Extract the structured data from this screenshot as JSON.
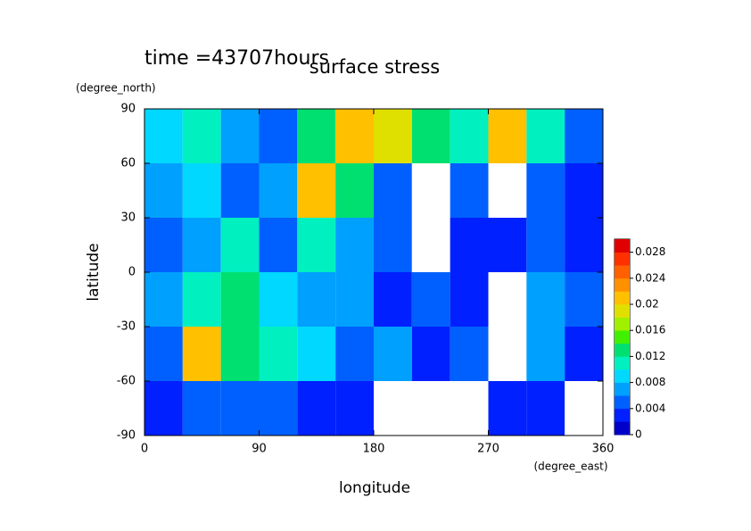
{
  "chart_data": {
    "type": "heatmap",
    "title": "surface stress",
    "subtitle": "time =43707hours",
    "x_label": "longitude",
    "x_unit": "(degree_east)",
    "y_label": "latitude",
    "y_unit": "(degree_north)",
    "x": [
      15,
      45,
      75,
      105,
      135,
      165,
      195,
      225,
      255,
      285,
      315,
      345
    ],
    "y": [
      75,
      45,
      15,
      -15,
      -45,
      -75
    ],
    "z": [
      [
        0.008,
        0.01,
        0.006,
        0.004,
        0.012,
        0.02,
        0.018,
        0.012,
        0.01,
        0.02,
        0.01,
        0.004
      ],
      [
        0.006,
        0.008,
        0.004,
        0.006,
        0.02,
        0.012,
        0.004,
        0,
        0.004,
        0,
        0.004,
        0.002
      ],
      [
        0.004,
        0.006,
        0.01,
        0.004,
        0.01,
        0.006,
        0.004,
        0,
        0.002,
        0.002,
        0.004,
        0.002
      ],
      [
        0.006,
        0.01,
        0.012,
        0.008,
        0.006,
        0.006,
        0.002,
        0.004,
        0.002,
        0,
        0.006,
        0.004
      ],
      [
        0.004,
        0.02,
        0.012,
        0.01,
        0.008,
        0.004,
        0.006,
        0.002,
        0.004,
        0,
        0.006,
        0.002
      ],
      [
        0.002,
        0.004,
        0.004,
        0.004,
        0.002,
        0.002,
        0,
        0,
        0,
        0.002,
        0.002,
        0
      ]
    ],
    "xlim": [
      0,
      360
    ],
    "ylim": [
      -90,
      90
    ],
    "xticks": [
      0,
      90,
      180,
      270,
      360
    ],
    "yticks": [
      90,
      60,
      30,
      0,
      -30,
      -60,
      -90
    ],
    "colorbar": {
      "lim": [
        0,
        0.03
      ],
      "ticks": [
        0,
        0.004,
        0.008,
        0.012,
        0.016,
        0.02,
        0.024,
        0.028
      ]
    },
    "colormap": [
      "#0000c8",
      "#0020ff",
      "#0060ff",
      "#00a0ff",
      "#00d8ff",
      "#00f0c0",
      "#00e070",
      "#40f000",
      "#a0f000",
      "#e0e000",
      "#ffc000",
      "#ff9000",
      "#ff6000",
      "#ff3000",
      "#e00000"
    ]
  }
}
